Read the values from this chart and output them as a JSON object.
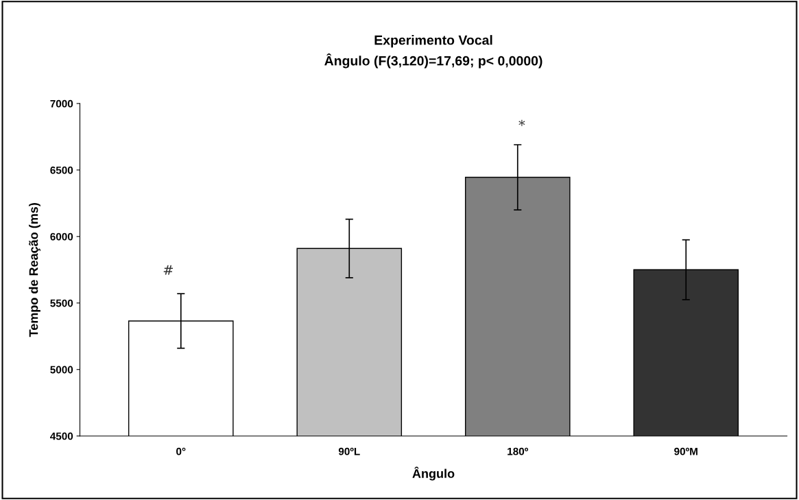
{
  "chart_data": {
    "type": "bar",
    "title": "Experimento Vocal\nÂngulo (F(3,120)=17,69; p< 0,0000)",
    "xlabel": "Ângulo",
    "ylabel": "Tempo de Reação (ms)",
    "categories": [
      "0°",
      "90ºL",
      "180º",
      "90ºM"
    ],
    "values": [
      5365,
      5910,
      6445,
      5750
    ],
    "colors": [
      "#ffffff",
      "#c0c0c0",
      "#808080",
      "#333333"
    ],
    "errors": [
      205,
      220,
      245,
      225
    ],
    "ylim": [
      4500,
      7000
    ],
    "yticks": [
      4500,
      5000,
      5500,
      6000,
      6500,
      7000
    ],
    "grid": false,
    "legend": false,
    "annotations": [
      "#",
      "*"
    ]
  }
}
